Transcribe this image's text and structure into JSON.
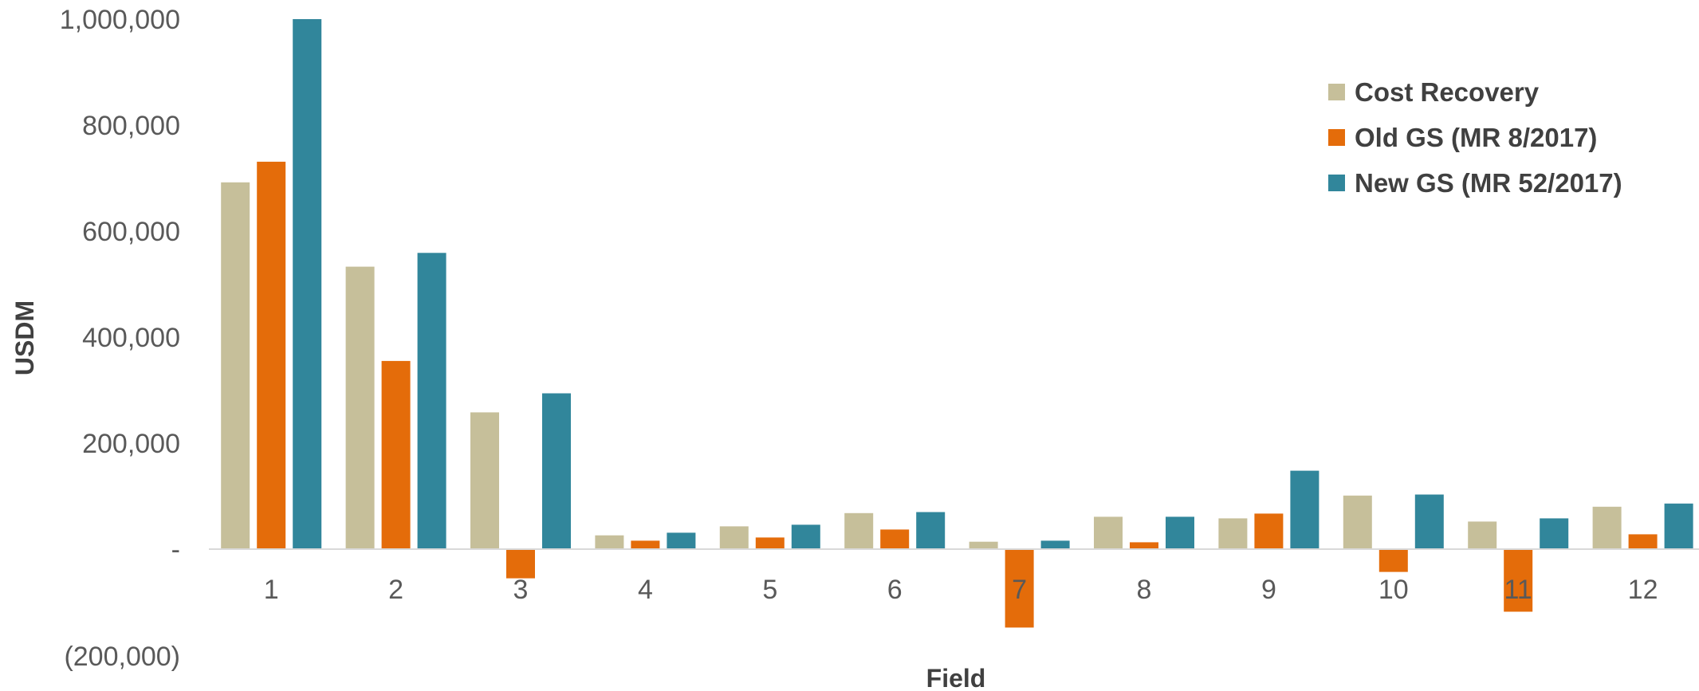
{
  "chart_data": {
    "type": "bar",
    "categories": [
      "1",
      "2",
      "3",
      "4",
      "5",
      "6",
      "7",
      "8",
      "9",
      "10",
      "11",
      "12"
    ],
    "series": [
      {
        "name": "Cost Recovery",
        "color": "#c6bf9a",
        "values": [
          692000,
          533000,
          258000,
          26000,
          43000,
          68000,
          14000,
          61000,
          58000,
          101000,
          52000,
          80000
        ]
      },
      {
        "name": "Old GS (MR 8/2017)",
        "color": "#e46c0a",
        "values": [
          731000,
          355000,
          -55000,
          16000,
          22000,
          37000,
          -148000,
          13000,
          67000,
          -43000,
          -118000,
          28000
        ]
      },
      {
        "name": "New GS (MR 52/2017)",
        "color": "#31869b",
        "values": [
          1000000,
          559000,
          294000,
          31000,
          46000,
          70000,
          16000,
          61000,
          148000,
          103000,
          58000,
          86000
        ]
      }
    ],
    "title": "",
    "xlabel": "Field",
    "ylabel": "USDM",
    "ylim": [
      -200000,
      1000000
    ],
    "yticks": [
      -200000,
      0,
      200000,
      400000,
      600000,
      800000,
      1000000
    ],
    "ytick_labels": [
      "(200,000)",
      "-",
      "200,000",
      "400,000",
      "600,000",
      "800,000",
      "1,000,000"
    ],
    "grid": false,
    "legend": "top-right"
  }
}
